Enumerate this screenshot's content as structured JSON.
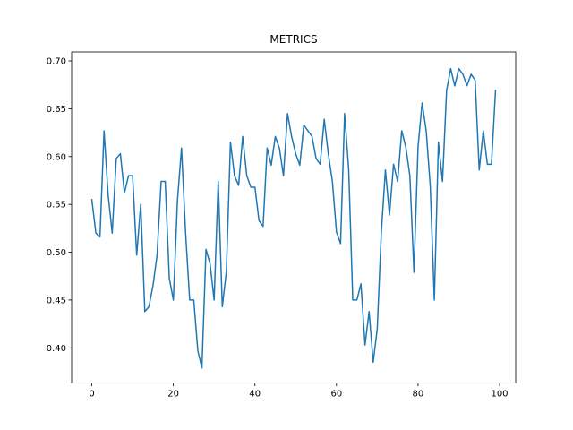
{
  "chart_data": {
    "type": "line",
    "title": "METRICS",
    "xlabel": "",
    "ylabel": "",
    "xlim": [
      -4.95,
      103.95
    ],
    "ylim": [
      0.3632,
      0.7094
    ],
    "x_ticks": [
      0,
      20,
      40,
      60,
      80,
      100
    ],
    "y_ticks": [
      0.4,
      0.45,
      0.5,
      0.55,
      0.6,
      0.65,
      0.7
    ],
    "grid": false,
    "legend": "none",
    "colors": {
      "series": "#1f77b4"
    },
    "series": [
      {
        "x": [
          0,
          1,
          2,
          3,
          4,
          5,
          6,
          7,
          8,
          9,
          10,
          11,
          12,
          13,
          14,
          15,
          16,
          17,
          18,
          19,
          20,
          21,
          22,
          23,
          24,
          25,
          26,
          27,
          28,
          29,
          30,
          31,
          32,
          33,
          34,
          35,
          36,
          37,
          38,
          39,
          40,
          41,
          42,
          43,
          44,
          45,
          46,
          47,
          48,
          49,
          50,
          51,
          52,
          53,
          54,
          55,
          56,
          57,
          58,
          59,
          60,
          61,
          62,
          63,
          64,
          65,
          66,
          67,
          68,
          69,
          70,
          71,
          72,
          73,
          74,
          75,
          76,
          77,
          78,
          79,
          80,
          81,
          82,
          83,
          84,
          85,
          86,
          87,
          88,
          89,
          90,
          91,
          92,
          93,
          94,
          95,
          96,
          97,
          98,
          99
        ],
        "values": [
          0.555,
          0.52,
          0.516,
          0.627,
          0.56,
          0.52,
          0.598,
          0.603,
          0.562,
          0.58,
          0.58,
          0.497,
          0.55,
          0.438,
          0.443,
          0.465,
          0.497,
          0.574,
          0.574,
          0.473,
          0.45,
          0.554,
          0.609,
          0.52,
          0.45,
          0.45,
          0.397,
          0.379,
          0.503,
          0.488,
          0.45,
          0.574,
          0.443,
          0.48,
          0.615,
          0.58,
          0.57,
          0.621,
          0.58,
          0.568,
          0.568,
          0.533,
          0.527,
          0.609,
          0.591,
          0.621,
          0.609,
          0.58,
          0.645,
          0.621,
          0.603,
          0.591,
          0.633,
          0.627,
          0.621,
          0.598,
          0.592,
          0.639,
          0.603,
          0.574,
          0.521,
          0.509,
          0.645,
          0.586,
          0.45,
          0.45,
          0.467,
          0.403,
          0.438,
          0.385,
          0.42,
          0.521,
          0.586,
          0.539,
          0.592,
          0.574,
          0.627,
          0.61,
          0.58,
          0.479,
          0.61,
          0.656,
          0.627,
          0.569,
          0.45,
          0.615,
          0.574,
          0.669,
          0.692,
          0.674,
          0.692,
          0.686,
          0.674,
          0.686,
          0.68,
          0.586,
          0.627,
          0.592,
          0.592,
          0.669
        ]
      }
    ]
  }
}
